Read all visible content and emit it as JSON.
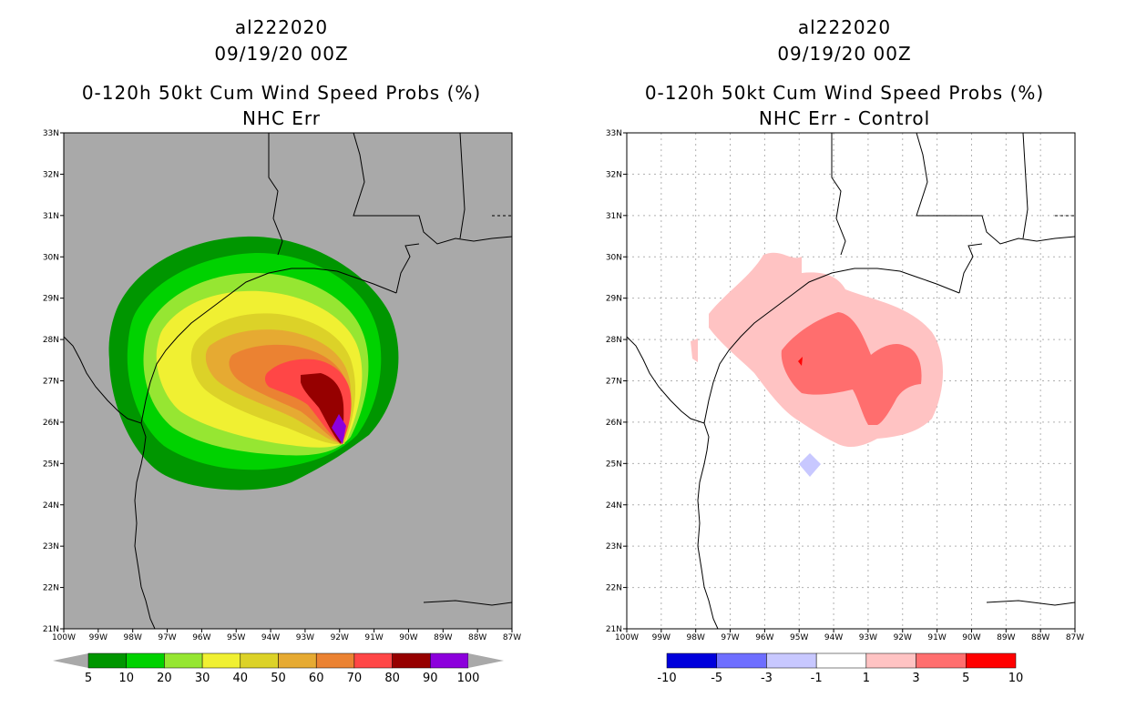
{
  "left_panel": {
    "storm_id": "al222020",
    "datetime": "09/19/20 00Z",
    "product": "0-120h 50kt Cum Wind Speed Probs (%)",
    "subtitle": "NHC Err",
    "background_color": "#a9a9a9",
    "colorbar": {
      "labels": [
        "5",
        "10",
        "20",
        "30",
        "40",
        "50",
        "60",
        "70",
        "80",
        "90",
        "100"
      ],
      "colors": [
        "#009600",
        "#00d200",
        "#96e632",
        "#f0f032",
        "#dcd228",
        "#e6aa32",
        "#eb8232",
        "#ff4646",
        "#960000",
        "#8c00dc"
      ],
      "under_color": "#a9a9a9",
      "over_color": "#a9a9a9"
    }
  },
  "right_panel": {
    "storm_id": "al222020",
    "datetime": "09/19/20 00Z",
    "product": "0-120h 50kt Cum Wind Speed Probs (%)",
    "subtitle": "NHC Err - Control",
    "background_color": "#ffffff",
    "colorbar": {
      "labels": [
        "-10",
        "-5",
        "-3",
        "-1",
        "1",
        "3",
        "5",
        "10"
      ],
      "colors": [
        "#0000dc",
        "#6e6eff",
        "#c8c8ff",
        "#ffffff",
        "#ffc3c3",
        "#ff6e6e",
        "#ff0000"
      ],
      "under_color": "#0000a0",
      "over_color": "#7d0000"
    }
  },
  "axes": {
    "lat_labels": [
      "33N",
      "32N",
      "31N",
      "30N",
      "29N",
      "28N",
      "27N",
      "26N",
      "25N",
      "24N",
      "23N",
      "22N",
      "21N"
    ],
    "lon_labels": [
      "100W",
      "99W",
      "98W",
      "97W",
      "96W",
      "95W",
      "94W",
      "93W",
      "92W",
      "91W",
      "90W",
      "89W",
      "88W",
      "87W"
    ],
    "lat_range": [
      21,
      33
    ],
    "lon_range": [
      -100,
      -87
    ]
  }
}
